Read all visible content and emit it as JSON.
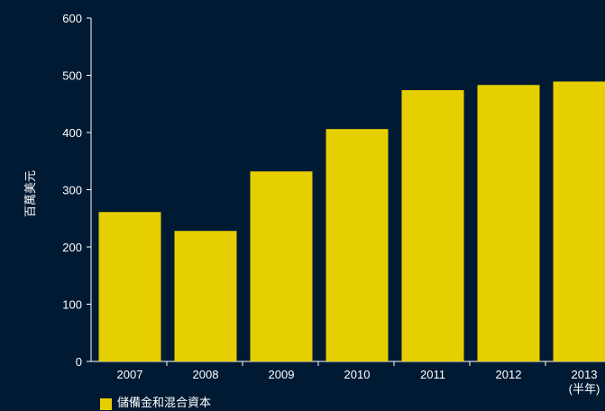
{
  "chart_data": {
    "type": "bar",
    "categories": [
      "2007",
      "2008",
      "2009",
      "2010",
      "2011",
      "2012",
      "2013"
    ],
    "category_sublabels": [
      "",
      "",
      "",
      "",
      "",
      "",
      "(半年)"
    ],
    "series": [
      {
        "name": "儲備金和混合資本",
        "values": [
          261,
          228,
          332,
          406,
          474,
          483,
          489
        ]
      }
    ],
    "ylabel": "百萬美元",
    "ylim": [
      0,
      600
    ],
    "yticks": [
      0,
      100,
      200,
      300,
      400,
      500,
      600
    ],
    "grid": false,
    "legend_position": "bottom-left",
    "colors": {
      "bar": "#e6cf00",
      "background": "#011a33",
      "axis": "#ffffff",
      "text": "#ffffff"
    }
  }
}
